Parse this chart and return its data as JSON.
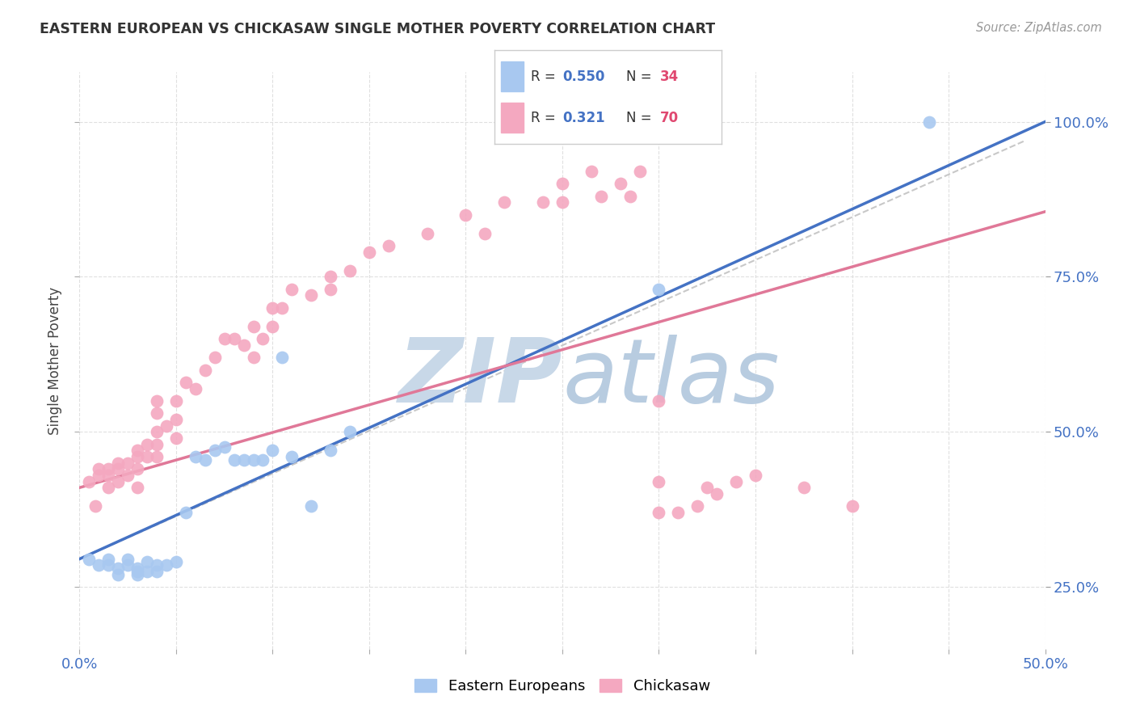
{
  "title": "EASTERN EUROPEAN VS CHICKASAW SINGLE MOTHER POVERTY CORRELATION CHART",
  "source": "Source: ZipAtlas.com",
  "ylabel": "Single Mother Poverty",
  "xmin": 0.0,
  "xmax": 0.5,
  "ymin": 0.15,
  "ymax": 1.08,
  "blue_R": 0.55,
  "blue_N": 34,
  "pink_R": 0.321,
  "pink_N": 70,
  "blue_color": "#a8c8f0",
  "pink_color": "#f4a8c0",
  "trend_blue": "#4472c4",
  "trend_pink": "#e07898",
  "trend_gray": "#bbbbbb",
  "watermark_zip_color": "#c8d8e8",
  "watermark_atlas_color": "#b8cce0",
  "legend_R_color": "#4472c4",
  "legend_N_color": "#e04870",
  "axis_color": "#4472c4",
  "grid_color": "#dddddd",
  "blue_scatter_x": [
    0.005,
    0.01,
    0.015,
    0.015,
    0.02,
    0.02,
    0.025,
    0.025,
    0.03,
    0.03,
    0.03,
    0.035,
    0.035,
    0.04,
    0.04,
    0.045,
    0.05,
    0.055,
    0.06,
    0.065,
    0.07,
    0.075,
    0.08,
    0.085,
    0.09,
    0.095,
    0.1,
    0.105,
    0.11,
    0.12,
    0.13,
    0.14,
    0.3,
    0.44
  ],
  "blue_scatter_y": [
    0.295,
    0.285,
    0.295,
    0.285,
    0.28,
    0.27,
    0.295,
    0.285,
    0.28,
    0.275,
    0.27,
    0.29,
    0.275,
    0.285,
    0.275,
    0.285,
    0.29,
    0.37,
    0.46,
    0.455,
    0.47,
    0.475,
    0.455,
    0.455,
    0.455,
    0.455,
    0.47,
    0.62,
    0.46,
    0.38,
    0.47,
    0.5,
    0.73,
    1.0
  ],
  "pink_scatter_x": [
    0.005,
    0.008,
    0.01,
    0.01,
    0.015,
    0.015,
    0.015,
    0.02,
    0.02,
    0.02,
    0.025,
    0.025,
    0.03,
    0.03,
    0.03,
    0.03,
    0.035,
    0.035,
    0.04,
    0.04,
    0.04,
    0.04,
    0.04,
    0.045,
    0.05,
    0.05,
    0.05,
    0.055,
    0.06,
    0.065,
    0.07,
    0.075,
    0.08,
    0.085,
    0.09,
    0.09,
    0.095,
    0.1,
    0.1,
    0.105,
    0.11,
    0.12,
    0.13,
    0.13,
    0.14,
    0.15,
    0.16,
    0.18,
    0.2,
    0.21,
    0.22,
    0.24,
    0.25,
    0.25,
    0.265,
    0.27,
    0.28,
    0.285,
    0.29,
    0.3,
    0.3,
    0.3,
    0.31,
    0.32,
    0.325,
    0.33,
    0.34,
    0.35,
    0.375,
    0.4
  ],
  "pink_scatter_y": [
    0.42,
    0.38,
    0.44,
    0.43,
    0.44,
    0.43,
    0.41,
    0.45,
    0.44,
    0.42,
    0.45,
    0.43,
    0.47,
    0.46,
    0.44,
    0.41,
    0.48,
    0.46,
    0.55,
    0.53,
    0.5,
    0.48,
    0.46,
    0.51,
    0.55,
    0.52,
    0.49,
    0.58,
    0.57,
    0.6,
    0.62,
    0.65,
    0.65,
    0.64,
    0.67,
    0.62,
    0.65,
    0.7,
    0.67,
    0.7,
    0.73,
    0.72,
    0.75,
    0.73,
    0.76,
    0.79,
    0.8,
    0.82,
    0.85,
    0.82,
    0.87,
    0.87,
    0.9,
    0.87,
    0.92,
    0.88,
    0.9,
    0.88,
    0.92,
    0.55,
    0.42,
    0.37,
    0.37,
    0.38,
    0.41,
    0.4,
    0.42,
    0.43,
    0.41,
    0.38
  ]
}
